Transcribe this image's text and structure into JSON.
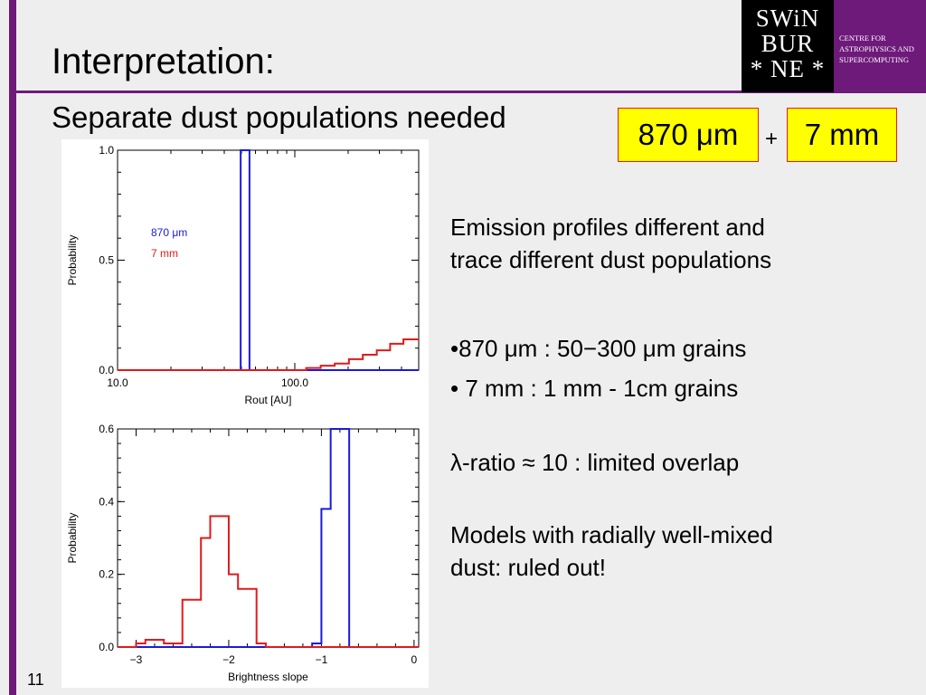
{
  "slide": {
    "title": "Interpretation:",
    "subtitle": "Separate dust populations needed",
    "tag_870": "870 μm",
    "plus": "+",
    "tag_7mm": "7 mm",
    "page_number": "11",
    "accent_color": "#6e1a7a",
    "tag_fill": "#ffff00",
    "tag_border": "#e02020"
  },
  "logo": {
    "line1": "SWiN",
    "line2": "BUR",
    "line3": "* NE *",
    "sub1": "CENTRE FOR",
    "sub2": "ASTROPHYSICS AND",
    "sub3": "SUPERCOMPUTING"
  },
  "bullets": {
    "p1_line1": "Emission profiles different and",
    "p1_line2": "trace different dust populations",
    "b1": "•870 μm : 50−300 μm grains",
    "b2": "•   7 mm : 1 mm - 1cm grains",
    "p2": "λ-ratio ≈ 10 : limited overlap",
    "p3_line1": "Models with radially well-mixed",
    "p3_line2": "dust: ruled out!"
  },
  "chart_data": [
    {
      "type": "histogram",
      "xlabel": "Rout [AU]",
      "ylabel": "Probability",
      "x_scale": "log",
      "xlim": [
        10,
        500
      ],
      "ylim": [
        0,
        1.0
      ],
      "xticks": [
        "10.0",
        "100.0"
      ],
      "yticks": [
        "0.0",
        "0.5",
        "1.0"
      ],
      "legend_placement": "left-middle",
      "series": [
        {
          "name": "870 μm",
          "color": "#1a1adc",
          "bins": [
            [
              49.5,
              55.5,
              1.0
            ]
          ]
        },
        {
          "name": "7 mm",
          "color": "#e01a1a",
          "bins": [
            [
              116,
              140,
              0.01
            ],
            [
              140,
              168,
              0.02
            ],
            [
              168,
              202,
              0.03
            ],
            [
              202,
              242,
              0.05
            ],
            [
              242,
              290,
              0.07
            ],
            [
              290,
              345,
              0.09
            ],
            [
              345,
              410,
              0.12
            ],
            [
              410,
              500,
              0.14
            ]
          ]
        }
      ]
    },
    {
      "type": "histogram",
      "xlabel": "Brightness slope",
      "ylabel": "Probability",
      "xlim": [
        -3.2,
        0.05
      ],
      "ylim": [
        0,
        0.6
      ],
      "xticks": [
        "−3",
        "−2",
        "−1",
        "0"
      ],
      "yticks": [
        "0.0",
        "0.2",
        "0.4",
        "0.6"
      ],
      "series": [
        {
          "name": "870 μm",
          "color": "#1a1adc",
          "bins": [
            [
              -1.1,
              -1.0,
              0.01
            ],
            [
              -1.0,
              -0.9,
              0.38
            ],
            [
              -0.9,
              -0.7,
              0.6
            ]
          ]
        },
        {
          "name": "7 mm",
          "color": "#e01a1a",
          "bins": [
            [
              -3.0,
              -2.9,
              0.01
            ],
            [
              -2.9,
              -2.7,
              0.02
            ],
            [
              -2.7,
              -2.5,
              0.01
            ],
            [
              -2.5,
              -2.3,
              0.13
            ],
            [
              -2.3,
              -2.2,
              0.3
            ],
            [
              -2.2,
              -2.0,
              0.36
            ],
            [
              -2.0,
              -1.9,
              0.2
            ],
            [
              -1.9,
              -1.7,
              0.16
            ],
            [
              -1.7,
              -1.6,
              0.01
            ]
          ]
        }
      ]
    }
  ]
}
